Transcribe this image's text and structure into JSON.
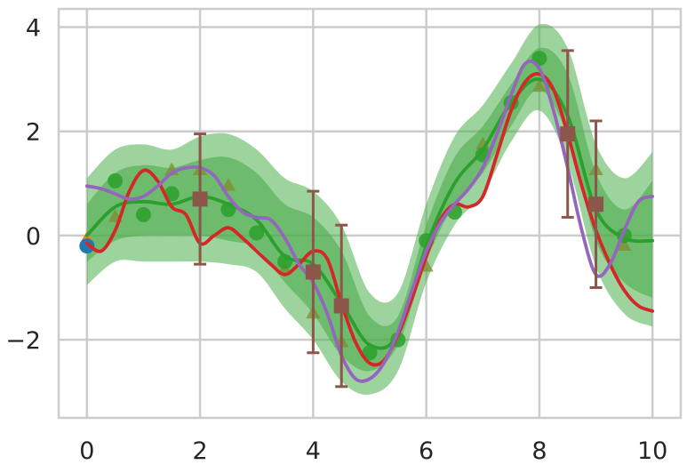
{
  "chart_data": {
    "type": "line",
    "title": "",
    "xlabel": "",
    "ylabel": "",
    "xlim": [
      -0.5,
      10.5
    ],
    "ylim": [
      -3.5,
      4.35
    ],
    "grid": true,
    "x_ticks": [
      0,
      2,
      4,
      6,
      8,
      10
    ],
    "y_ticks": [
      -2,
      0,
      2,
      4
    ],
    "x_tick_labels": [
      "0",
      "2",
      "4",
      "6",
      "8",
      "10"
    ],
    "y_tick_labels": [
      "−2",
      "0",
      "2",
      "4"
    ],
    "colors": {
      "band": "#4cae4c",
      "green": "#2ca02c",
      "red": "#d62728",
      "purple": "#9467bd",
      "brown": "#8c564b",
      "blue": "#1f77b4",
      "orange": "#ff7f0e",
      "olive": "#7f8c2d"
    },
    "series": [
      {
        "kind": "band_outer",
        "x": [
          0,
          0.5,
          1,
          1.5,
          2,
          2.5,
          3,
          3.5,
          4,
          4.5,
          5,
          5.5,
          6,
          6.5,
          7,
          7.5,
          8,
          8.5,
          9,
          9.5,
          10
        ],
        "lower": [
          -0.95,
          -0.5,
          -0.5,
          -0.5,
          -0.5,
          -0.55,
          -0.7,
          -1.4,
          -2.0,
          -2.8,
          -3.05,
          -2.6,
          -0.9,
          0.2,
          0.8,
          1.8,
          2.4,
          1.4,
          -0.6,
          -1.5,
          -1.75
        ],
        "upper": [
          1.1,
          1.65,
          1.75,
          1.65,
          1.9,
          1.95,
          1.65,
          1.1,
          0.85,
          0.2,
          -1.1,
          -1.1,
          0.6,
          1.9,
          2.5,
          3.3,
          4.05,
          3.6,
          1.75,
          1.1,
          1.6
        ]
      },
      {
        "kind": "band_inner",
        "x": [
          0,
          0.5,
          1,
          1.5,
          2,
          2.5,
          3,
          3.5,
          4,
          4.5,
          5,
          5.5,
          6,
          6.5,
          7,
          7.5,
          8,
          8.5,
          9,
          9.5,
          10
        ],
        "lower": [
          -0.5,
          -0.1,
          0.0,
          0.0,
          0.0,
          -0.1,
          -0.25,
          -0.9,
          -1.5,
          -2.3,
          -2.6,
          -2.1,
          -0.5,
          0.6,
          1.2,
          2.1,
          2.8,
          1.9,
          -0.1,
          -0.9,
          -1.2
        ],
        "upper": [
          0.6,
          1.2,
          1.35,
          1.3,
          1.45,
          1.5,
          1.2,
          0.6,
          0.35,
          -0.3,
          -1.55,
          -1.55,
          0.2,
          1.5,
          2.1,
          2.9,
          3.6,
          3.1,
          1.2,
          0.5,
          1.05
        ]
      },
      {
        "kind": "line",
        "color": "green",
        "x": [
          0,
          0.5,
          1,
          1.5,
          2,
          2.5,
          3,
          3.5,
          4,
          4.5,
          5,
          5.5,
          6,
          6.5,
          7,
          7.5,
          8,
          8.5,
          9,
          9.5,
          10
        ],
        "y": [
          0.0,
          0.55,
          0.65,
          0.6,
          0.75,
          0.6,
          0.3,
          -0.4,
          -0.55,
          -1.3,
          -2.1,
          -1.9,
          -0.2,
          1.0,
          1.65,
          2.55,
          3.0,
          2.3,
          0.5,
          -0.05,
          -0.1
        ]
      },
      {
        "kind": "line",
        "color": "red",
        "x": [
          0,
          0.25,
          0.5,
          0.75,
          1,
          1.25,
          1.5,
          1.75,
          2,
          2.25,
          2.5,
          2.75,
          3,
          3.25,
          3.5,
          3.75,
          4,
          4.25,
          4.5,
          4.75,
          5,
          5.25,
          5.5,
          5.75,
          6,
          6.25,
          6.5,
          6.75,
          7,
          7.25,
          7.5,
          7.75,
          8,
          8.25,
          8.5,
          8.75,
          9,
          9.25,
          9.5,
          9.75,
          10
        ],
        "y": [
          -0.15,
          -0.3,
          0.1,
          0.85,
          1.25,
          1.05,
          0.55,
          0.4,
          -0.15,
          0.0,
          0.15,
          -0.05,
          -0.3,
          -0.55,
          -0.75,
          -0.55,
          -0.3,
          -0.45,
          -1.3,
          -2.05,
          -2.45,
          -2.4,
          -1.9,
          -1.2,
          -0.4,
          0.3,
          0.6,
          0.55,
          0.75,
          1.55,
          2.4,
          2.95,
          3.1,
          2.8,
          1.95,
          0.95,
          0.1,
          -0.55,
          -1.05,
          -1.35,
          -1.45
        ]
      },
      {
        "kind": "line",
        "color": "purple",
        "x": [
          0,
          0.25,
          0.5,
          0.75,
          1,
          1.25,
          1.5,
          1.75,
          2,
          2.25,
          2.5,
          2.75,
          3,
          3.25,
          3.5,
          3.75,
          4,
          4.25,
          4.5,
          4.75,
          5,
          5.25,
          5.5,
          5.75,
          6,
          6.25,
          6.5,
          6.75,
          7,
          7.25,
          7.5,
          7.75,
          8,
          8.25,
          8.5,
          8.75,
          9,
          9.25,
          9.5,
          9.75,
          10
        ],
        "y": [
          0.95,
          0.9,
          0.8,
          0.7,
          0.75,
          0.95,
          1.2,
          1.3,
          1.3,
          1.15,
          0.75,
          0.45,
          0.35,
          0.3,
          -0.05,
          -0.55,
          -0.9,
          -1.5,
          -2.3,
          -2.75,
          -2.75,
          -2.45,
          -1.85,
          -1.05,
          -0.3,
          0.25,
          0.6,
          0.9,
          1.3,
          1.95,
          2.7,
          3.3,
          3.2,
          2.4,
          1.3,
          0.1,
          -0.75,
          -0.55,
          0.1,
          0.65,
          0.75
        ]
      }
    ],
    "scatter_circles_green": {
      "x": [
        0.5,
        1,
        1.5,
        2.5,
        3,
        3.5,
        5,
        5.5,
        6,
        6.5,
        7,
        7.5,
        8,
        9.5
      ],
      "y": [
        1.05,
        0.4,
        0.8,
        0.5,
        0.05,
        -0.5,
        -2.25,
        -2.0,
        -0.1,
        0.45,
        1.55,
        2.55,
        3.4,
        0.0
      ]
    },
    "scatter_circle_blue": {
      "x": [
        0
      ],
      "y": [
        -0.2
      ]
    },
    "scatter_triangle_orange": {
      "x": [
        0
      ],
      "y": [
        -0.05
      ]
    },
    "scatter_triangles_olive": {
      "x": [
        0.5,
        1.5,
        2,
        2.5,
        3.5,
        4,
        4.5,
        6,
        7,
        8,
        9,
        9.5
      ],
      "y": [
        0.35,
        1.25,
        1.25,
        0.95,
        -0.65,
        -1.5,
        -2.05,
        -0.6,
        1.75,
        2.85,
        1.25,
        -0.2
      ]
    },
    "errorbars": {
      "x": [
        2,
        4,
        4.5,
        8.5,
        9
      ],
      "y": [
        0.7,
        -0.7,
        -1.35,
        1.95,
        0.6
      ],
      "err": [
        1.25,
        1.55,
        1.55,
        1.6,
        1.6
      ]
    }
  }
}
